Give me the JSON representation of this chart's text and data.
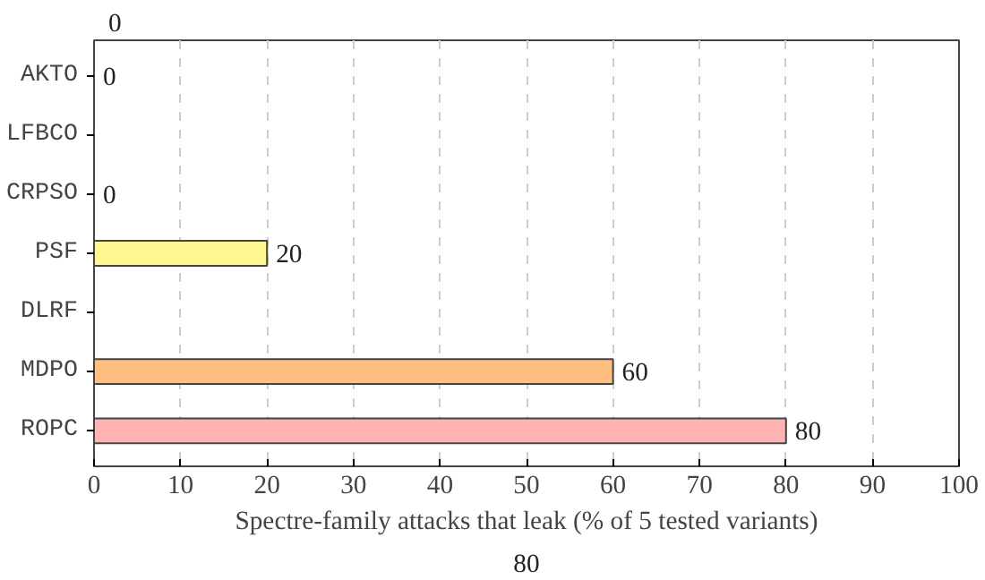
{
  "chart_data": {
    "type": "bar",
    "orientation": "horizontal",
    "xlabel": "Spectre-family attacks that leak (% of 5 tested variants)",
    "categories": [
      "AKTO",
      "LFBCO",
      "CRPSO",
      "PSF",
      "DLRF",
      "MDPO",
      "ROPC"
    ],
    "values": [
      0,
      null,
      0,
      20,
      null,
      60,
      80
    ],
    "colors": [
      null,
      null,
      null,
      "#fff68f",
      null,
      "#ffbf80",
      "#ffb3b3"
    ],
    "value_labels": [
      "0",
      null,
      "0",
      "20",
      null,
      "60",
      "80"
    ],
    "xlim": [
      0,
      100
    ],
    "xticks": [
      0,
      10,
      20,
      30,
      40,
      50,
      60,
      70,
      80,
      90,
      100
    ],
    "grid": "x",
    "annotations": [
      "0",
      "80"
    ]
  }
}
